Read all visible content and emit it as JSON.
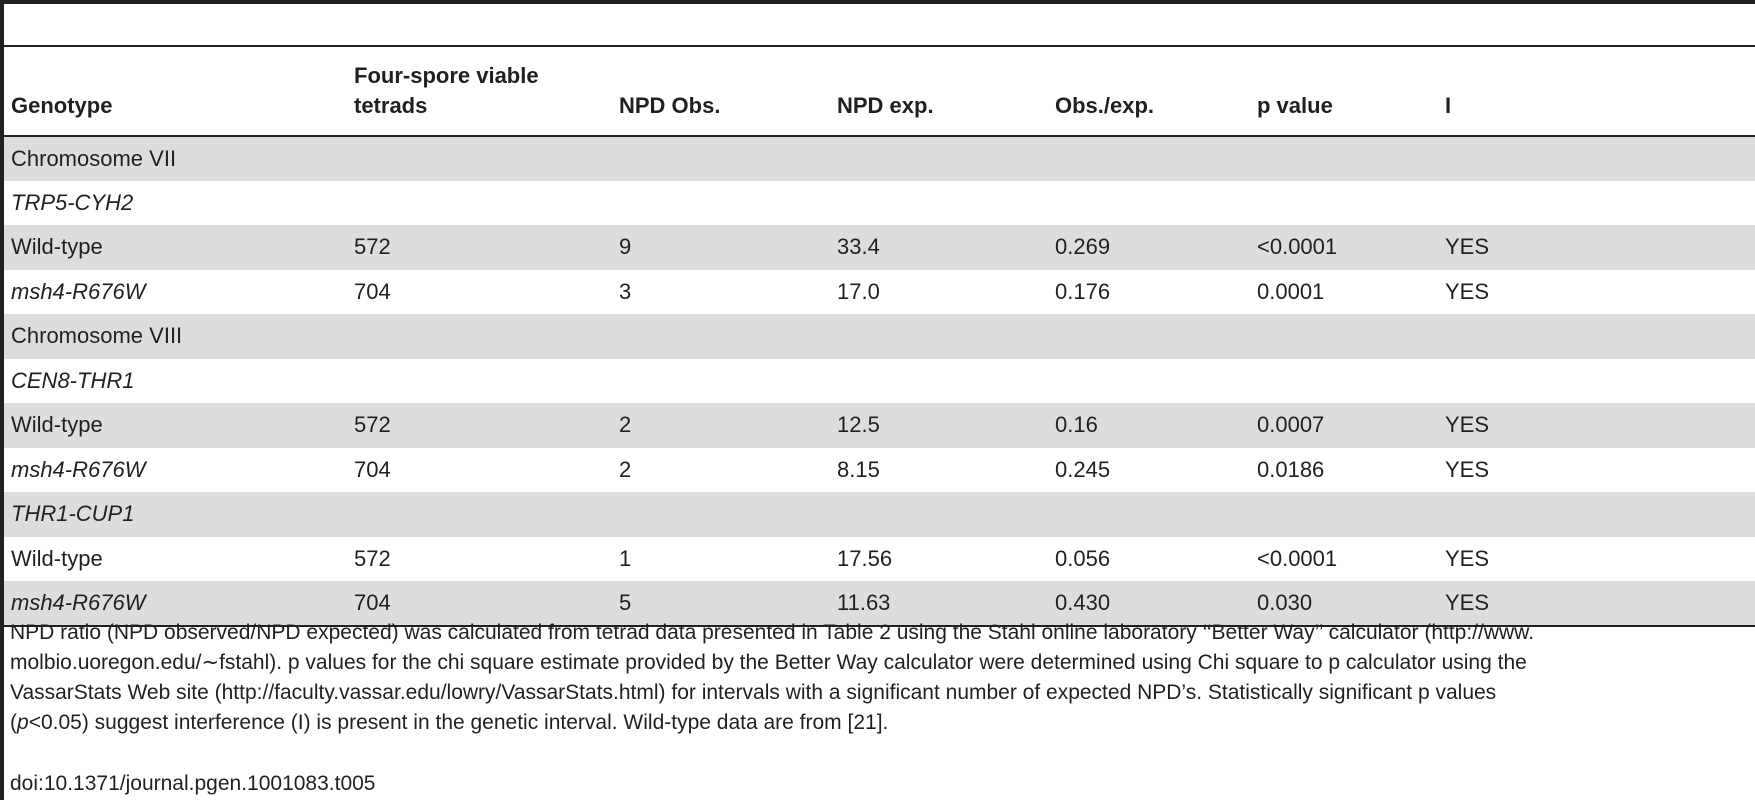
{
  "table": {
    "columns": [
      "Genotype",
      "Four-spore viable tetrads",
      "NPD Obs.",
      "NPD exp.",
      "Obs./exp.",
      "p value",
      "I"
    ],
    "header_lines": {
      "col2_line1": "Four-spore viable",
      "col2_line2": "tetrads"
    },
    "rows": [
      {
        "label": "Chromosome VII",
        "italic": false,
        "shaded": true,
        "cells": [
          "",
          "",
          "",
          "",
          "",
          ""
        ]
      },
      {
        "label": "TRP5-CYH2",
        "italic": true,
        "shaded": false,
        "cells": [
          "",
          "",
          "",
          "",
          "",
          ""
        ]
      },
      {
        "label": "Wild-type",
        "italic": false,
        "shaded": true,
        "cells": [
          "572",
          "9",
          "33.4",
          "0.269",
          "<0.0001",
          "YES"
        ]
      },
      {
        "label": "msh4-R676W",
        "italic": true,
        "shaded": false,
        "cells": [
          "704",
          "3",
          "17.0",
          "0.176",
          "0.0001",
          "YES"
        ]
      },
      {
        "label": "Chromosome VIII",
        "italic": false,
        "shaded": true,
        "cells": [
          "",
          "",
          "",
          "",
          "",
          ""
        ]
      },
      {
        "label": "CEN8-THR1",
        "italic": true,
        "shaded": false,
        "cells": [
          "",
          "",
          "",
          "",
          "",
          ""
        ]
      },
      {
        "label": "Wild-type",
        "italic": false,
        "shaded": true,
        "cells": [
          "572",
          "2",
          "12.5",
          "0.16",
          "0.0007",
          "YES"
        ]
      },
      {
        "label": "msh4-R676W",
        "italic": true,
        "shaded": false,
        "cells": [
          "704",
          "2",
          "8.15",
          "0.245",
          "0.0186",
          "YES"
        ]
      },
      {
        "label": "THR1-CUP1",
        "italic": true,
        "shaded": true,
        "cells": [
          "",
          "",
          "",
          "",
          "",
          ""
        ]
      },
      {
        "label": "Wild-type",
        "italic": false,
        "shaded": false,
        "cells": [
          "572",
          "1",
          "17.56",
          "0.056",
          "<0.0001",
          "YES"
        ]
      },
      {
        "label": "msh4-R676W",
        "italic": true,
        "shaded": true,
        "cells": [
          "704",
          "5",
          "11.63",
          "0.430",
          "0.030",
          "YES"
        ]
      }
    ]
  },
  "footnote": {
    "line1": "NPD ratio (NPD observed/NPD expected) was calculated from tetrad data presented in Table 2 using the Stahl online laboratory ‘‘Better Way’’ calculator (http://www.",
    "line2": "molbio.uoregon.edu/∼fstahl). p values for the chi square estimate provided by the Better Way calculator were determined using Chi square to p calculator using the",
    "line3": "VassarStats Web site (http://faculty.vassar.edu/lowry/VassarStats.html) for intervals with a significant number of expected NPD’s. Statistically significant p values",
    "line4_open": "(",
    "line4_p": "p",
    "line4_rest": "<0.05) suggest interference (I) is present in the genetic interval. Wild-type data are from [21]."
  },
  "doi": "doi:10.1371/journal.pgen.1001083.t005"
}
